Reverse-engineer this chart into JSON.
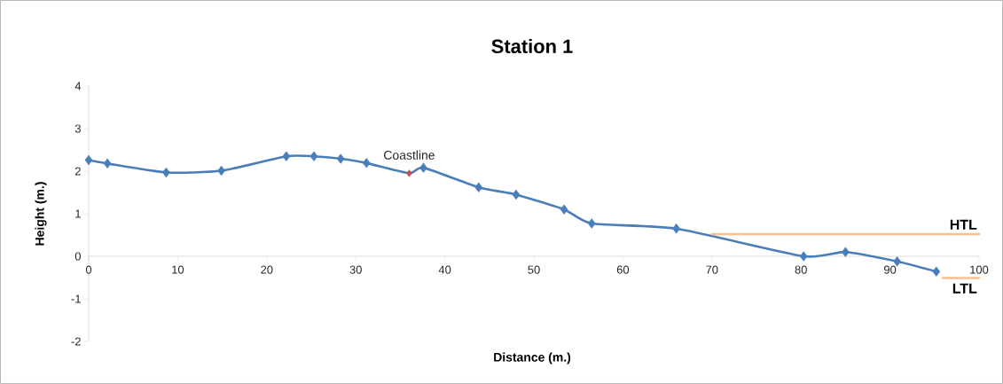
{
  "chart_data": {
    "type": "line",
    "title": "Station 1",
    "xlabel": "Distance (m.)",
    "ylabel": "Height (m.)",
    "xlim": [
      0,
      100
    ],
    "xticks": [
      0,
      10,
      20,
      30,
      40,
      50,
      60,
      70,
      80,
      90,
      100
    ],
    "ylim": [
      -2,
      4
    ],
    "yticks": [
      -2,
      -1,
      0,
      1,
      2,
      3,
      4
    ],
    "marker": "diamond",
    "annotations": [
      {
        "text": "Coastline",
        "x": 36.0,
        "y": 1.95
      }
    ],
    "series": [
      {
        "type": "line",
        "color": "#4a7ebb",
        "x": [
          0,
          2.1,
          8.7,
          14.9,
          22.2,
          25.3,
          28.3,
          31.2,
          36.0,
          37.6,
          43.8,
          48.0,
          53.4,
          56.5,
          66.0,
          80.3,
          85.0,
          90.8,
          95.2
        ],
        "values": [
          2.26,
          2.18,
          1.97,
          2.01,
          2.35,
          2.35,
          2.29,
          2.19,
          1.95,
          2.08,
          1.62,
          1.45,
          1.1,
          0.77,
          0.65,
          0.0,
          0.1,
          -0.12,
          -0.36
        ],
        "colors": [
          "#4a7ebb",
          "#4a7ebb",
          "#4a7ebb",
          "#4a7ebb",
          "#4a7ebb",
          "#4a7ebb",
          "#4a7ebb",
          "#4a7ebb",
          "#c0504d",
          "#4a7ebb",
          "#4a7ebb",
          "#4a7ebb",
          "#4a7ebb",
          "#4a7ebb",
          "#4a7ebb",
          "#4a7ebb",
          "#4a7ebb",
          "#4a7ebb",
          "#4a7ebb"
        ]
      },
      {
        "type": "line",
        "name": "HTL",
        "color": "#fac090",
        "marker": "none",
        "x": [
          70,
          100
        ],
        "values": [
          0.52,
          0.52
        ]
      },
      {
        "type": "line",
        "name": "LTL",
        "color": "#fac090",
        "marker": "none",
        "x": [
          95.9,
          100
        ],
        "values": [
          -0.51,
          -0.51
        ]
      }
    ]
  }
}
